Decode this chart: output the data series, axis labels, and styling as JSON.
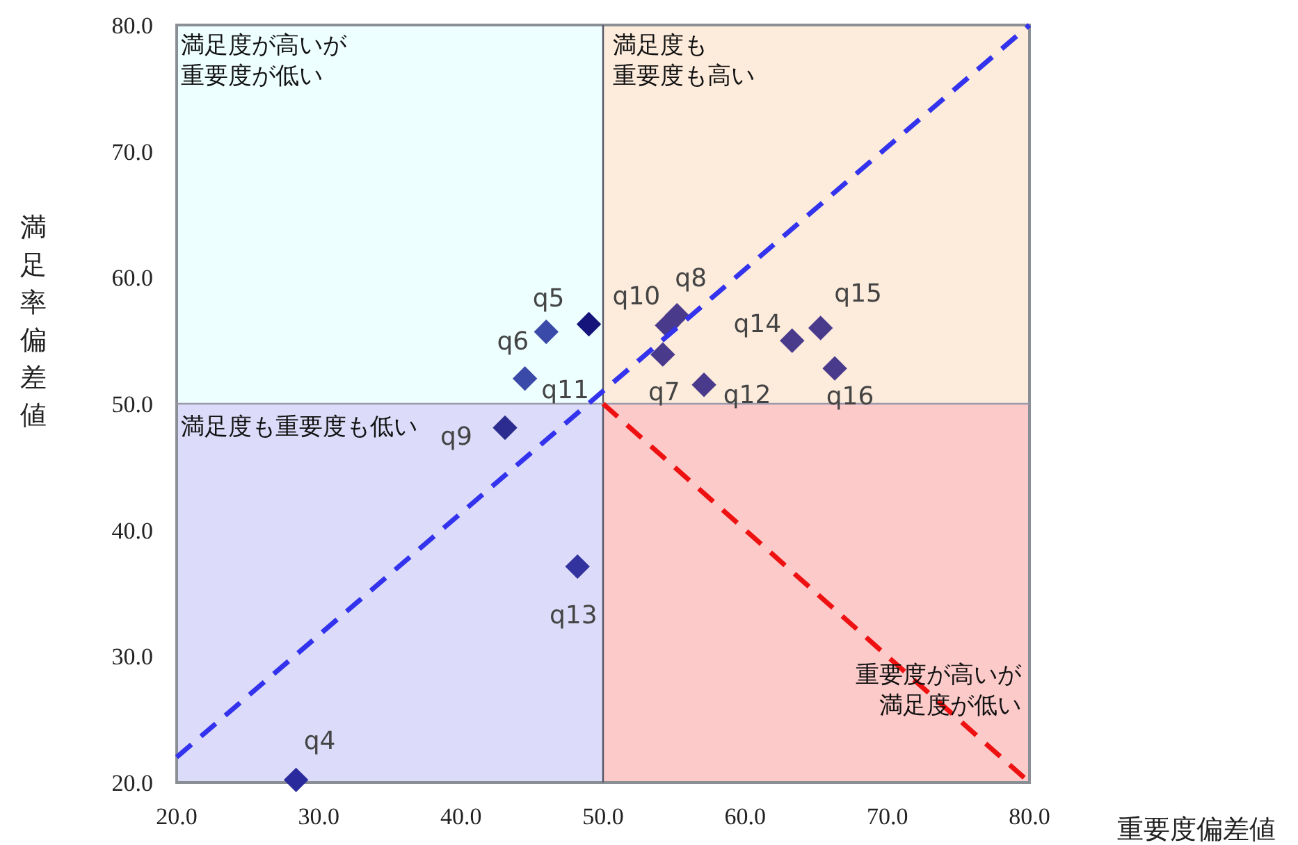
{
  "chart_data": {
    "type": "scatter",
    "xlabel": "重要度偏差値",
    "ylabel": "満足率偏差値",
    "xlim": [
      20,
      80
    ],
    "ylim": [
      20,
      80
    ],
    "xticks": [
      {
        "value": 20,
        "label": "20.0"
      },
      {
        "value": 30,
        "label": "30.0"
      },
      {
        "value": 40,
        "label": "40.0"
      },
      {
        "value": 50,
        "label": "50.0"
      },
      {
        "value": 60,
        "label": "60.0"
      },
      {
        "value": 70,
        "label": "70.0"
      },
      {
        "value": 80,
        "label": "80.0"
      }
    ],
    "yticks": [
      {
        "value": 20,
        "label": "20.0"
      },
      {
        "value": 30,
        "label": "30.0"
      },
      {
        "value": 40,
        "label": "40.0"
      },
      {
        "value": 50,
        "label": "50.0"
      },
      {
        "value": 60,
        "label": "60.0"
      },
      {
        "value": 70,
        "label": "70.0"
      },
      {
        "value": 80,
        "label": "80.0"
      }
    ],
    "grid": false,
    "marker": "diamond",
    "series": [
      {
        "x": [
          28.4,
          49.0,
          46.0,
          44.5,
          43.1,
          48.2,
          54.5,
          55.2,
          54.2,
          57.1,
          63.3,
          65.3,
          66.3
        ],
        "values": [
          20.2,
          56.3,
          55.7,
          52.0,
          48.1,
          37.1,
          56.2,
          57.0,
          53.9,
          51.5,
          55.0,
          56.0,
          52.8
        ],
        "colors": [
          "#2a2a9c",
          "#14147a",
          "#3a4aa8",
          "#3a4aa8",
          "#2c2c90",
          "#3333a0",
          "#4a3a8c",
          "#4a3a8c",
          "#4a3a8c",
          "#4a3a8c",
          "#4a3a8c",
          "#4a3a8c",
          "#4a3a8c"
        ]
      },
      {
        "type": "line",
        "x": [
          20,
          80
        ],
        "values": [
          22,
          80
        ],
        "color": "#3333ee",
        "line_style": "dashed",
        "marker": "none"
      },
      {
        "type": "line",
        "x": [
          50,
          80
        ],
        "values": [
          50,
          20
        ],
        "color": "#ee1111",
        "line_style": "dashed",
        "marker": "none"
      }
    ],
    "ref_lines": [
      {
        "axis": "x",
        "value": 50,
        "color": "#555566"
      },
      {
        "axis": "y",
        "value": 50,
        "color": "#9999aa"
      }
    ],
    "annotations": [
      "満足度が高いが重要度が低い",
      "満足度も重要度も高い",
      "満足度も重要度も低い",
      "重要度が高いが満足度が低い",
      {
        "text": "q4",
        "x": 28.4,
        "y": 20.2
      },
      {
        "text": "q5",
        "x": 49.0,
        "y": 56.3
      },
      {
        "text": "q6",
        "x": 46.0,
        "y": 55.7
      },
      {
        "text": "q11",
        "x": 44.5,
        "y": 52.0
      },
      {
        "text": "q9",
        "x": 43.1,
        "y": 48.1
      },
      {
        "text": "q13",
        "x": 48.2,
        "y": 37.1
      },
      {
        "text": "q10",
        "x": 54.5,
        "y": 56.2
      },
      {
        "text": "q8",
        "x": 55.2,
        "y": 57.0
      },
      {
        "text": "q7",
        "x": 54.2,
        "y": 53.9
      },
      {
        "text": "q12",
        "x": 57.1,
        "y": 51.5
      },
      {
        "text": "q14",
        "x": 63.3,
        "y": 55.0
      },
      {
        "text": "q15",
        "x": 65.3,
        "y": 56.0
      },
      {
        "text": "q16",
        "x": 66.3,
        "y": 52.8
      }
    ]
  }
}
